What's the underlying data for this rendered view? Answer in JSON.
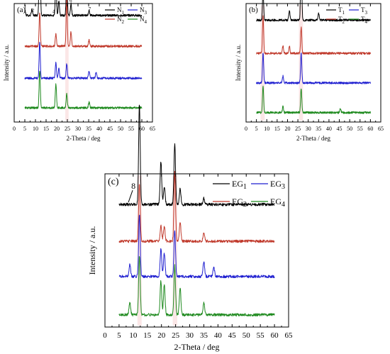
{
  "chart_data": [
    {
      "type": "line",
      "panel_label": "(a)",
      "xlabel": "2-Theta / deg",
      "ylabel": "Intensity / a.u.",
      "xlim": [
        0,
        65
      ],
      "xticks": [
        "0",
        "5",
        "10",
        "15",
        "20",
        "25",
        "30",
        "35",
        "40",
        "45",
        "50",
        "55",
        "60",
        "65"
      ],
      "legend_placement": "top-right",
      "series": [
        {
          "name": "N1",
          "name_main": "N",
          "name_sub": "1",
          "color": "#000000",
          "baseline": 0.9,
          "peaks": [
            [
              5.0,
              0.05
            ],
            [
              8.3,
              0.05
            ],
            [
              12.0,
              0.9
            ],
            [
              19.6,
              0.3
            ],
            [
              21.0,
              0.12
            ],
            [
              24.7,
              0.32
            ],
            [
              26.7,
              0.1
            ],
            [
              35.2,
              0.04
            ]
          ]
        },
        {
          "name": "N2",
          "name_main": "N",
          "name_sub": "2",
          "color": "#c0392b",
          "baseline": 0.64,
          "peaks": [
            [
              12.0,
              0.28
            ],
            [
              19.6,
              0.1
            ],
            [
              24.7,
              0.4
            ],
            [
              26.7,
              0.12
            ],
            [
              35.2,
              0.05
            ]
          ]
        },
        {
          "name": "N3",
          "name_main": "N",
          "name_sub": "3",
          "color": "#1f1fd0",
          "baseline": 0.37,
          "peaks": [
            [
              12.0,
              0.3
            ],
            [
              19.6,
              0.13
            ],
            [
              21.0,
              0.08
            ],
            [
              24.7,
              0.12
            ],
            [
              35.2,
              0.06
            ],
            [
              38.5,
              0.05
            ]
          ]
        },
        {
          "name": "N4",
          "name_main": "N",
          "name_sub": "4",
          "color": "#1e8a1e",
          "baseline": 0.12,
          "peaks": [
            [
              12.0,
              0.32
            ],
            [
              19.6,
              0.2
            ],
            [
              24.7,
              0.12
            ],
            [
              35.2,
              0.05
            ]
          ]
        }
      ],
      "annotations": [
        {
          "text": "1",
          "x": 5.2
        },
        {
          "text": "2",
          "x": 8.8
        },
        {
          "text": "3",
          "x": 12.0
        },
        {
          "text": "4",
          "x": 18.6
        },
        {
          "text": "5",
          "x": 24.3
        },
        {
          "text": "6",
          "x": 26.6
        },
        {
          "text": "7",
          "x": 35.5
        }
      ],
      "highlights": [
        [
          24.0,
          25.6
        ]
      ]
    },
    {
      "type": "line",
      "panel_label": "(b)",
      "xlabel": "2-Theta / deg",
      "ylabel": "Intensity / a.u.",
      "xlim": [
        0,
        65
      ],
      "xticks": [
        "0",
        "5",
        "10",
        "15",
        "20",
        "25",
        "30",
        "35",
        "40",
        "45",
        "50",
        "55",
        "60",
        "65"
      ],
      "legend_placement": "top-right",
      "series": [
        {
          "name": "T1",
          "name_main": "T",
          "name_sub": "1",
          "color": "#000000",
          "baseline": 0.86,
          "peaks": [
            [
              8.2,
              0.25
            ],
            [
              26.6,
              0.55
            ],
            [
              20.9,
              0.08
            ],
            [
              35.0,
              0.06
            ]
          ]
        },
        {
          "name": "T2",
          "name_main": "T",
          "name_sub": "2",
          "color": "#c0392b",
          "baseline": 0.58,
          "peaks": [
            [
              8.2,
              0.32
            ],
            [
              26.6,
              0.22
            ],
            [
              17.8,
              0.06
            ],
            [
              20.9,
              0.06
            ]
          ]
        },
        {
          "name": "T3",
          "name_main": "T",
          "name_sub": "3",
          "color": "#1f1fd0",
          "baseline": 0.33,
          "peaks": [
            [
              8.2,
              0.25
            ],
            [
              26.6,
              0.25
            ],
            [
              17.8,
              0.06
            ]
          ]
        },
        {
          "name": "T4",
          "name_main": "T",
          "name_sub": "4",
          "color": "#1e8a1e",
          "baseline": 0.08,
          "peaks": [
            [
              8.2,
              0.22
            ],
            [
              26.6,
              0.2
            ],
            [
              17.8,
              0.05
            ],
            [
              45.5,
              0.03
            ]
          ]
        }
      ],
      "highlights": [
        [
          7.0,
          9.0
        ],
        [
          25.5,
          27.5
        ]
      ]
    },
    {
      "type": "line",
      "panel_label": "(c)",
      "xlabel": "2-Theta / deg",
      "ylabel": "Intensity / a.u.",
      "xlim": [
        0,
        65
      ],
      "xticks": [
        "0",
        "5",
        "10",
        "15",
        "20",
        "25",
        "30",
        "35",
        "40",
        "45",
        "50",
        "55",
        "60",
        "65"
      ],
      "legend_placement": "top-right",
      "series": [
        {
          "name": "EG1",
          "name_main": "EG",
          "name_sub": "1",
          "color": "#000000",
          "baseline": 0.8,
          "peaks": [
            [
              12.2,
              0.65
            ],
            [
              19.8,
              0.28
            ],
            [
              21.0,
              0.12
            ],
            [
              24.7,
              0.4
            ],
            [
              26.6,
              0.1
            ],
            [
              35.0,
              0.04
            ]
          ]
        },
        {
          "name": "EG2",
          "name_main": "EG",
          "name_sub": "2",
          "color": "#c0392b",
          "baseline": 0.56,
          "peaks": [
            [
              12.2,
              0.38
            ],
            [
              19.8,
              0.1
            ],
            [
              21.0,
              0.1
            ],
            [
              24.7,
              0.45
            ],
            [
              26.6,
              0.12
            ],
            [
              35.0,
              0.05
            ]
          ]
        },
        {
          "name": "EG3",
          "name_main": "EG",
          "name_sub": "3",
          "color": "#1f1fd0",
          "baseline": 0.33,
          "peaks": [
            [
              8.8,
              0.08
            ],
            [
              12.2,
              0.4
            ],
            [
              19.8,
              0.18
            ],
            [
              21.0,
              0.15
            ],
            [
              24.7,
              0.3
            ],
            [
              35.0,
              0.1
            ],
            [
              38.5,
              0.06
            ]
          ]
        },
        {
          "name": "EG4",
          "name_main": "EG",
          "name_sub": "4",
          "color": "#1e8a1e",
          "baseline": 0.08,
          "peaks": [
            [
              8.8,
              0.08
            ],
            [
              12.2,
              0.38
            ],
            [
              19.8,
              0.22
            ],
            [
              21.0,
              0.2
            ],
            [
              24.7,
              0.32
            ],
            [
              26.6,
              0.18
            ],
            [
              35.0,
              0.08
            ]
          ]
        }
      ],
      "annotations": [
        {
          "text": "8",
          "x": 8.8
        }
      ],
      "highlights": [
        [
          11.5,
          13.0
        ],
        [
          24.0,
          25.6
        ]
      ]
    }
  ]
}
